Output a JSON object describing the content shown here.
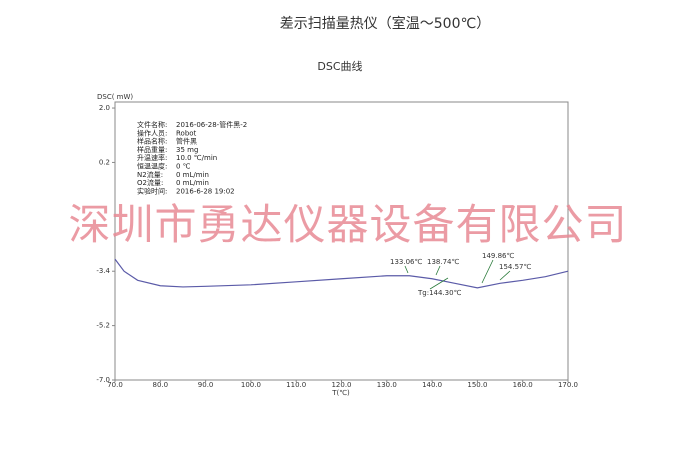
{
  "chart_data": {
    "type": "line",
    "title": "差示扫描量热仪（室温～500℃）",
    "subtitle": "DSC曲线",
    "y_label": "DSC( mW)",
    "x_label": "T(℃)",
    "watermark": "深圳市勇达仪器设备有限公司",
    "info": [
      [
        "文件名称:",
        "2016-06-28-管件黑-2"
      ],
      [
        "操作人员:",
        "Robot"
      ],
      [
        "样品名称:",
        "管件黑"
      ],
      [
        "样品重量:",
        "35 mg"
      ],
      [
        "升温速率:",
        "10.0 ℃/min"
      ],
      [
        "恒温温度:",
        "0 ℃"
      ],
      [
        "N2流量:",
        "0 mL/min"
      ],
      [
        "O2流量:",
        "0 mL/min"
      ],
      [
        "实验时间:",
        "2016-6-28 19:02"
      ]
    ],
    "annotations": [
      "133.06℃",
      "138.74℃",
      "149.86℃",
      "154.57℃",
      "Tg:144.30℃"
    ],
    "x": [
      70,
      72,
      75,
      80,
      85,
      90,
      100,
      110,
      120,
      130,
      135,
      140,
      145,
      150,
      155,
      160,
      165,
      170
    ],
    "series": [
      {
        "color": "#5b5ba8",
        "values": [
          -3.0,
          -3.4,
          -3.7,
          -3.88,
          -3.92,
          -3.9,
          -3.85,
          -3.75,
          -3.65,
          -3.55,
          -3.55,
          -3.65,
          -3.8,
          -3.95,
          -3.8,
          -3.7,
          -3.58,
          -3.4
        ]
      }
    ],
    "xlim": [
      70,
      170
    ],
    "ylim": [
      -7.0,
      2.2
    ],
    "xticks": [
      {
        "value": 70,
        "label": "70.0"
      },
      {
        "value": 80,
        "label": "80.0"
      },
      {
        "value": 90,
        "label": "90.0"
      },
      {
        "value": 100,
        "label": "100.0"
      },
      {
        "value": 110,
        "label": "110.0"
      },
      {
        "value": 120,
        "label": "120.0"
      },
      {
        "value": 130,
        "label": "130.0"
      },
      {
        "value": 140,
        "label": "140.0"
      },
      {
        "value": 150,
        "label": "150.0"
      },
      {
        "value": 160,
        "label": "160.0"
      },
      {
        "value": 170,
        "label": "170.0"
      }
    ],
    "yticks": [
      {
        "value": 2.0,
        "label": "2.0"
      },
      {
        "value": 0.2,
        "label": "0.2"
      },
      {
        "value": -3.4,
        "label": "-3.4"
      },
      {
        "value": -5.2,
        "label": "-5.2"
      },
      {
        "value": -7.0,
        "label": "-7.0"
      }
    ]
  }
}
